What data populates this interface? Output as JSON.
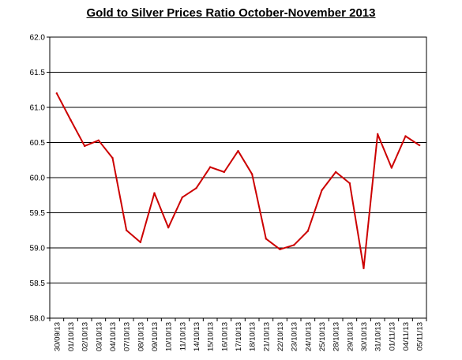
{
  "chart_data": {
    "type": "line",
    "title": "Gold to Silver Prices Ratio October-November 2013",
    "xlabel": "",
    "ylabel": "",
    "x": [
      "30/09/13",
      "01/10/13",
      "02/10/13",
      "03/10/13",
      "04/10/13",
      "07/10/13",
      "08/10/13",
      "09/10/13",
      "10/10/13",
      "11/10/13",
      "14/10/13",
      "15/10/13",
      "16/10/13",
      "17/10/13",
      "18/10/13",
      "21/10/13",
      "22/10/13",
      "23/10/13",
      "24/10/13",
      "25/10/13",
      "28/10/13",
      "29/10/13",
      "30/10/13",
      "31/10/13",
      "01/11/13",
      "04/11/13",
      "05/11/13"
    ],
    "series": [
      {
        "values": [
          61.2,
          60.82,
          60.45,
          60.53,
          60.28,
          59.25,
          59.08,
          59.78,
          59.29,
          59.72,
          59.85,
          60.15,
          60.08,
          60.38,
          60.05,
          59.13,
          58.98,
          59.04,
          59.24,
          59.82,
          60.08,
          59.92,
          58.71,
          60.62,
          60.14,
          60.59,
          60.46
        ]
      }
    ],
    "ylim": [
      58.0,
      62.0
    ],
    "yticks": [
      "58.0",
      "58.5",
      "59.0",
      "59.5",
      "60.0",
      "60.5",
      "61.0",
      "61.5",
      "62.0"
    ],
    "grid": "horizontal",
    "legend": "none",
    "colors": {
      "line": "#cc0000",
      "grid": "#000000",
      "axis": "#000000"
    }
  }
}
